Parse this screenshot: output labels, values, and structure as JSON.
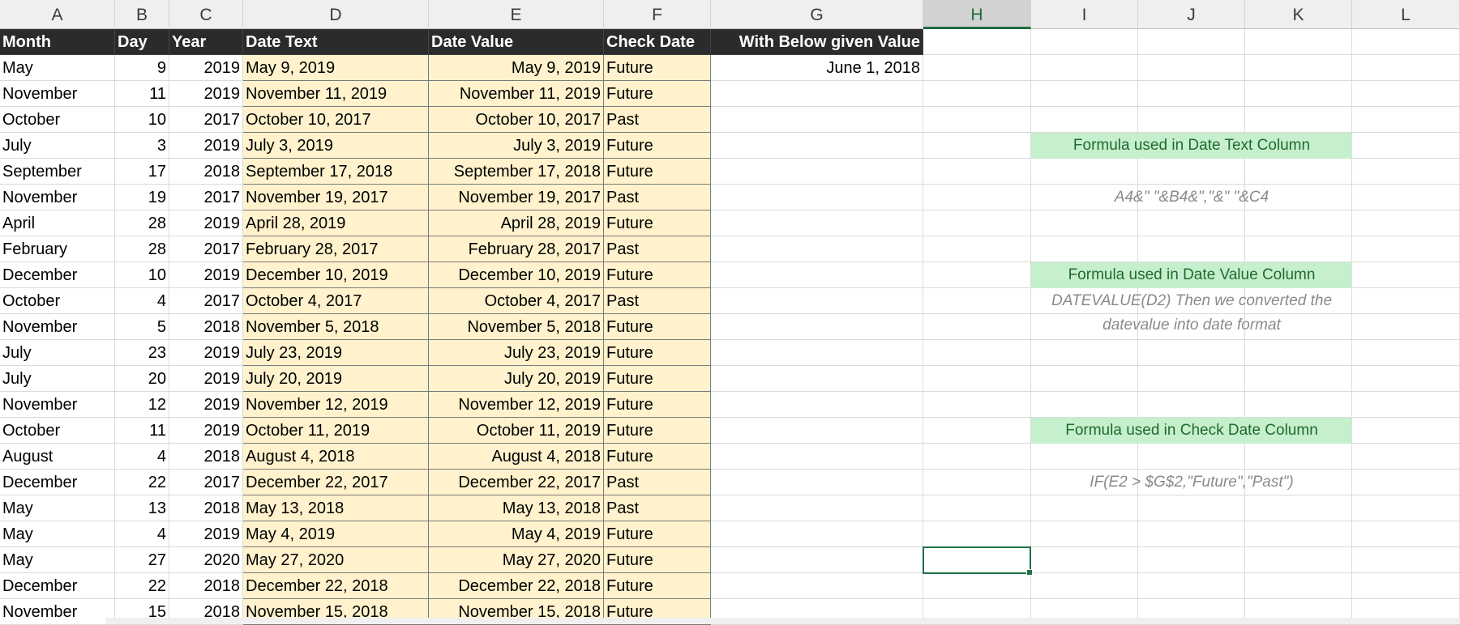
{
  "column_headers": [
    "A",
    "B",
    "C",
    "D",
    "E",
    "F",
    "G",
    "H",
    "I",
    "J",
    "K",
    "L"
  ],
  "active_column": "H",
  "table_headers": {
    "month": "Month",
    "day": "Day",
    "year": "Year",
    "date_text": "Date Text",
    "date_value": "Date Value",
    "check_date": "Check Date",
    "with_below": "With Below given Value"
  },
  "given_value": "June 1, 2018",
  "rows": [
    {
      "month": "May",
      "day": "9",
      "year": "2019",
      "date_text": "May 9, 2019",
      "date_value": "May 9, 2019",
      "check": "Future"
    },
    {
      "month": "November",
      "day": "11",
      "year": "2019",
      "date_text": "November 11, 2019",
      "date_value": "November 11, 2019",
      "check": "Future"
    },
    {
      "month": "October",
      "day": "10",
      "year": "2017",
      "date_text": "October 10, 2017",
      "date_value": "October 10, 2017",
      "check": "Past"
    },
    {
      "month": "July",
      "day": "3",
      "year": "2019",
      "date_text": "July 3, 2019",
      "date_value": "July 3, 2019",
      "check": "Future"
    },
    {
      "month": "September",
      "day": "17",
      "year": "2018",
      "date_text": "September 17, 2018",
      "date_value": "September 17, 2018",
      "check": "Future"
    },
    {
      "month": "November",
      "day": "19",
      "year": "2017",
      "date_text": "November 19, 2017",
      "date_value": "November 19, 2017",
      "check": "Past"
    },
    {
      "month": "April",
      "day": "28",
      "year": "2019",
      "date_text": "April 28, 2019",
      "date_value": "April 28, 2019",
      "check": "Future"
    },
    {
      "month": "February",
      "day": "28",
      "year": "2017",
      "date_text": "February 28, 2017",
      "date_value": "February 28, 2017",
      "check": "Past"
    },
    {
      "month": "December",
      "day": "10",
      "year": "2019",
      "date_text": "December 10, 2019",
      "date_value": "December 10, 2019",
      "check": "Future"
    },
    {
      "month": "October",
      "day": "4",
      "year": "2017",
      "date_text": "October 4, 2017",
      "date_value": "October 4, 2017",
      "check": "Past"
    },
    {
      "month": "November",
      "day": "5",
      "year": "2018",
      "date_text": "November 5, 2018",
      "date_value": "November 5, 2018",
      "check": "Future"
    },
    {
      "month": "July",
      "day": "23",
      "year": "2019",
      "date_text": "July 23, 2019",
      "date_value": "July 23, 2019",
      "check": "Future"
    },
    {
      "month": "July",
      "day": "20",
      "year": "2019",
      "date_text": "July 20, 2019",
      "date_value": "July 20, 2019",
      "check": "Future"
    },
    {
      "month": "November",
      "day": "12",
      "year": "2019",
      "date_text": "November 12, 2019",
      "date_value": "November 12, 2019",
      "check": "Future"
    },
    {
      "month": "October",
      "day": "11",
      "year": "2019",
      "date_text": "October 11, 2019",
      "date_value": "October 11, 2019",
      "check": "Future"
    },
    {
      "month": "August",
      "day": "4",
      "year": "2018",
      "date_text": "August 4, 2018",
      "date_value": "August 4, 2018",
      "check": "Future"
    },
    {
      "month": "December",
      "day": "22",
      "year": "2017",
      "date_text": "December 22, 2017",
      "date_value": "December 22, 2017",
      "check": "Past"
    },
    {
      "month": "May",
      "day": "13",
      "year": "2018",
      "date_text": "May 13, 2018",
      "date_value": "May 13, 2018",
      "check": "Past"
    },
    {
      "month": "May",
      "day": "4",
      "year": "2019",
      "date_text": "May 4, 2019",
      "date_value": "May 4, 2019",
      "check": "Future"
    },
    {
      "month": "May",
      "day": "27",
      "year": "2020",
      "date_text": "May 27, 2020",
      "date_value": "May 27, 2020",
      "check": "Future"
    },
    {
      "month": "December",
      "day": "22",
      "year": "2018",
      "date_text": "December 22, 2018",
      "date_value": "December 22, 2018",
      "check": "Future"
    },
    {
      "month": "November",
      "day": "15",
      "year": "2018",
      "date_text": "November 15, 2018",
      "date_value": "November 15, 2018",
      "check": "Future"
    }
  ],
  "notes": {
    "date_text_label": "Formula used in Date Text Column",
    "date_text_formula": "A4&\" \"&B4&\",\"&\" \"&C4",
    "date_value_label": "Formula used in Date Value Column",
    "date_value_formula_line1": "DATEVALUE(D2) Then we converted the",
    "date_value_formula_line2": "datevalue into date format",
    "check_date_label": "Formula used in Check Date Column",
    "check_date_formula": "IF(E2 > $G$2,\"Future\",\"Past\")"
  },
  "colors": {
    "header_bg": "#2b2b2b",
    "highlight_yellow": "#fff2cc",
    "label_green": "#c6efce",
    "label_text": "#1f6b2d",
    "selection": "#1e7145"
  }
}
